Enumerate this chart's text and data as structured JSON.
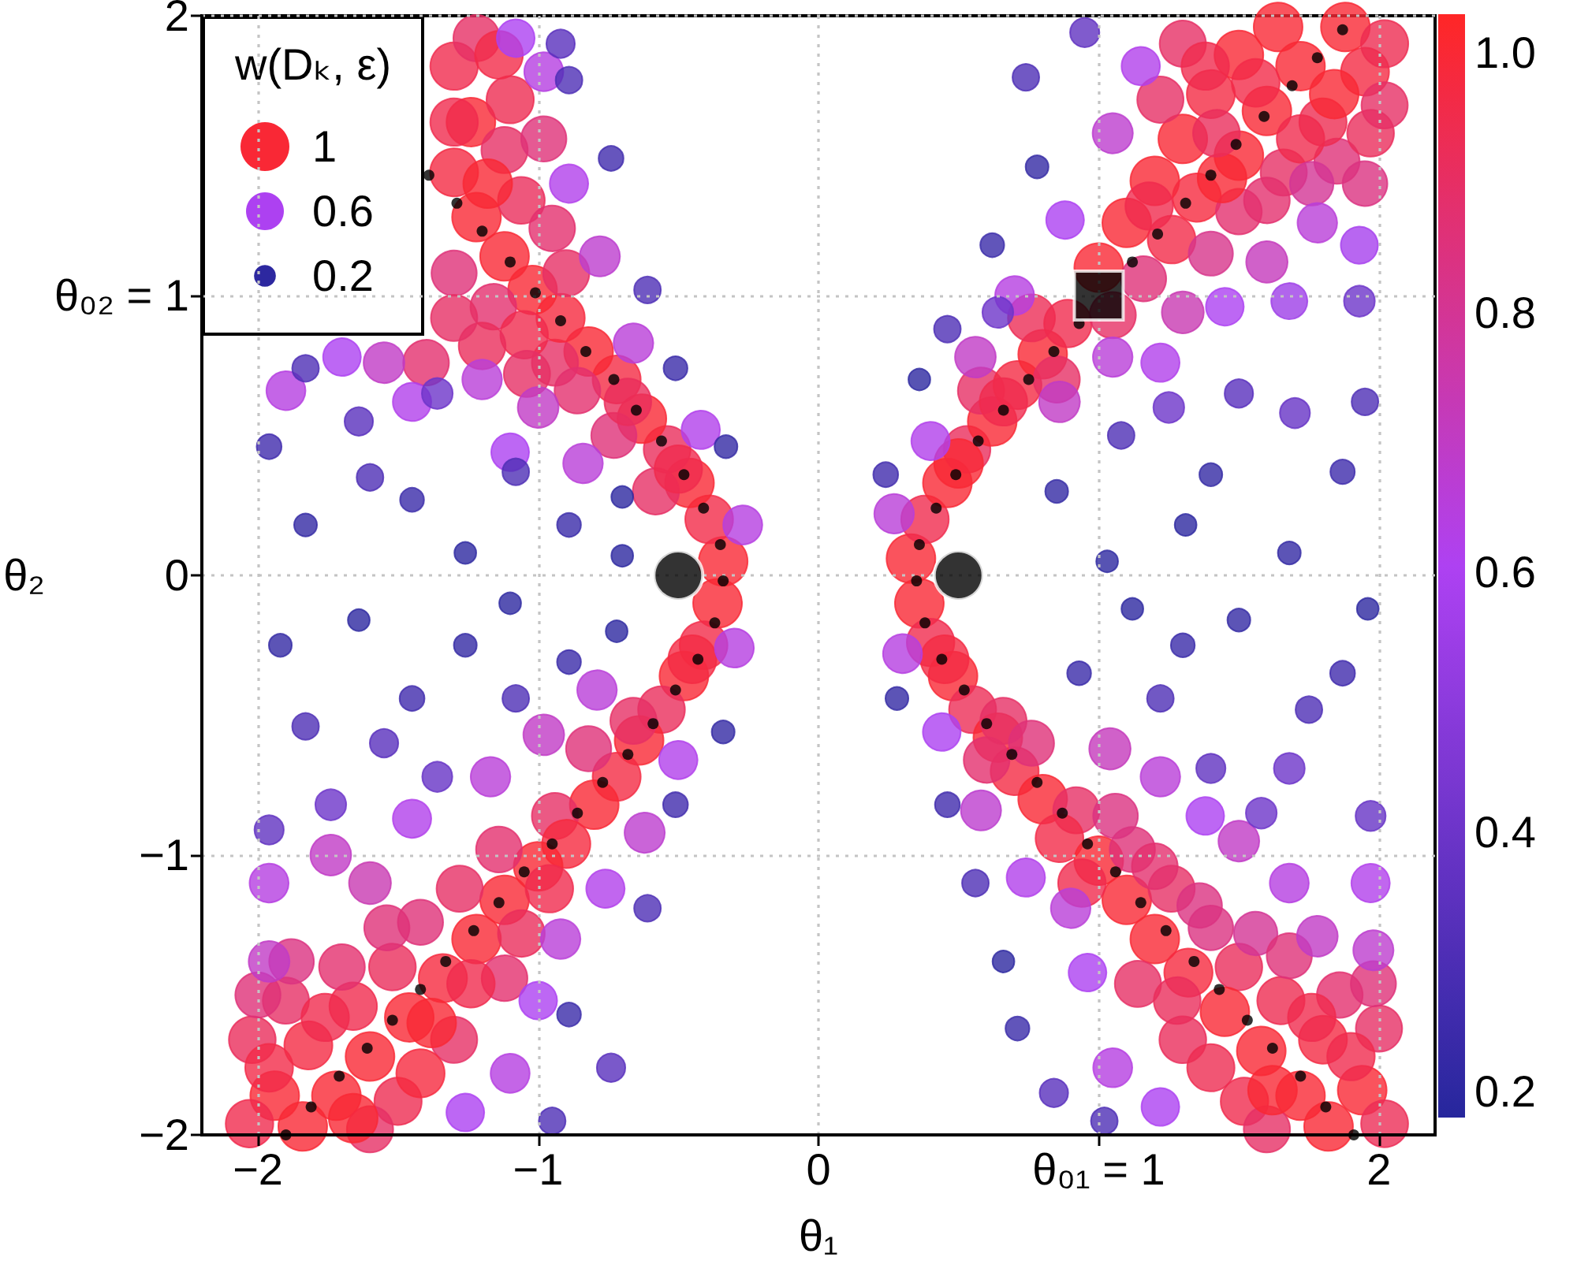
{
  "chart_data": {
    "type": "bubble",
    "xlabel": "θ₁",
    "ylabel": "θ₂",
    "legend_title": "w(Dₖ, ε)",
    "xlim": [
      -2.2,
      2.2
    ],
    "ylim": [
      -2,
      2
    ],
    "xticks": [
      -2,
      -1,
      0,
      {
        "value": 1,
        "label": "θ₀₁ = 1"
      },
      2
    ],
    "yticks": [
      -2,
      -1,
      0,
      {
        "value": 1,
        "label": "θ₀₂ = 1"
      },
      2
    ],
    "grid": true,
    "marker": "circle",
    "size_legend": [
      1,
      0.6,
      0.2
    ],
    "clim": [
      0.18,
      1.03
    ],
    "cticks": [
      0.2,
      0.4,
      0.6,
      0.8,
      {
        "value": 1,
        "label": "1.0"
      }
    ],
    "series": [
      {
        "x": [
          0.33,
          0.38,
          0.46,
          0.53,
          0.62,
          0.58,
          0.71,
          0.8,
          0.76,
          0.89,
          1.05,
          1.0,
          1.16,
          1.1,
          1.26,
          1.4,
          1.2,
          1.35,
          1.5,
          1.3,
          1.5,
          1.66,
          1.85,
          1.4,
          1.6,
          1.8,
          1.97,
          1.3,
          1.5,
          1.72,
          1.95,
          1.64,
          1.88,
          2.02,
          0.5,
          0.66,
          0.85,
          1.18,
          1.44,
          1.6,
          1.72,
          1.42,
          1.84,
          1.56,
          1.22,
          1.38,
          2.02,
          1.76,
          1.95,
          0.27,
          0.4,
          0.56,
          0.7,
          0.88,
          1.05,
          1.15,
          1.6,
          1.78,
          1.45,
          1.93,
          1.68,
          1.22,
          1.3,
          1.05,
          0.86,
          0.24,
          0.36,
          0.46,
          0.62,
          0.78,
          0.74,
          0.95,
          0.64,
          1.08,
          1.25,
          1.4,
          1.5,
          1.7,
          1.93,
          1.87,
          1.31,
          1.68,
          1.03,
          1.95,
          0.85
        ],
        "values": [
          0.06,
          0.2,
          0.33,
          0.45,
          0.55,
          0.66,
          0.68,
          0.79,
          0.92,
          0.9,
          0.93,
          1.1,
          1.06,
          1.26,
          1.2,
          1.15,
          1.41,
          1.35,
          1.3,
          1.56,
          1.5,
          1.44,
          1.48,
          1.72,
          1.66,
          1.62,
          1.58,
          1.9,
          1.86,
          1.82,
          1.8,
          1.96,
          1.96,
          1.68,
          0.4,
          0.62,
          0.7,
          1.32,
          1.42,
          1.34,
          1.56,
          1.58,
          1.72,
          1.76,
          1.7,
          1.82,
          1.9,
          1.4,
          1.4,
          0.22,
          0.48,
          0.78,
          1.0,
          1.27,
          1.58,
          1.82,
          1.12,
          1.26,
          0.96,
          1.18,
          0.98,
          0.76,
          0.94,
          0.78,
          0.62,
          0.36,
          0.7,
          0.88,
          1.18,
          1.46,
          1.78,
          1.94,
          0.94,
          0.5,
          0.6,
          0.36,
          0.65,
          0.58,
          0.98,
          0.37,
          0.18,
          0.08,
          0.05,
          0.62,
          0.3
        ],
        "sizes": [
          1,
          0.95,
          1,
          0.92,
          1,
          0.9,
          0.97,
          1,
          0.93,
          0.95,
          0.9,
          1,
          0.86,
          1,
          0.96,
          0.82,
          1,
          0.98,
          0.88,
          1,
          1,
          0.9,
          0.86,
          0.97,
          1,
          0.94,
          0.92,
          0.9,
          1,
          1,
          0.97,
          1,
          1,
          0.9,
          1,
          0.95,
          0.9,
          0.95,
          1,
          0.88,
          0.95,
          0.92,
          1,
          0.96,
          0.9,
          0.95,
          0.94,
          0.8,
          0.84,
          0.66,
          0.62,
          0.7,
          0.64,
          0.6,
          0.68,
          0.62,
          0.72,
          0.66,
          0.6,
          0.58,
          0.55,
          0.62,
          0.74,
          0.66,
          0.7,
          0.26,
          0.2,
          0.3,
          0.24,
          0.22,
          0.3,
          0.36,
          0.4,
          0.3,
          0.4,
          0.22,
          0.34,
          0.38,
          0.4,
          0.25,
          0.2,
          0.22,
          0.2,
          0.3,
          0.22
        ],
        "cvalues": [
          1,
          0.95,
          1,
          0.92,
          1,
          0.9,
          0.97,
          1,
          0.93,
          0.95,
          0.9,
          1,
          0.86,
          1,
          0.96,
          0.82,
          1,
          0.98,
          0.88,
          1,
          1,
          0.9,
          0.86,
          0.97,
          1,
          0.94,
          0.92,
          0.9,
          1,
          1,
          0.97,
          1,
          1,
          0.9,
          1,
          0.95,
          0.9,
          0.95,
          1,
          0.88,
          0.95,
          0.92,
          1,
          0.96,
          0.9,
          0.95,
          0.94,
          0.8,
          0.84,
          0.66,
          0.62,
          0.7,
          0.64,
          0.6,
          0.68,
          0.62,
          0.72,
          0.66,
          0.6,
          0.58,
          0.55,
          0.62,
          0.74,
          0.66,
          0.7,
          0.26,
          0.2,
          0.3,
          0.24,
          0.22,
          0.3,
          0.36,
          0.4,
          0.3,
          0.4,
          0.22,
          0.34,
          0.38,
          0.4,
          0.25,
          0.2,
          0.22,
          0.2,
          0.3,
          0.22
        ],
        "colors": [
          "#f92835",
          "#f02b4d",
          "#f92835",
          "#ea2d5b",
          "#f92835",
          "#e62f65",
          "#f42a43",
          "#f92835",
          "#ec2d56",
          "#f02b4d",
          "#e62f65",
          "#f92835",
          "#df3178",
          "#f92835",
          "#f22b48",
          "#d7348b",
          "#f92835",
          "#f6293e",
          "#e3306e",
          "#f92835",
          "#f92835",
          "#e62f65",
          "#df3178",
          "#f42a43",
          "#f92835",
          "#ee2c51",
          "#ea2d5b",
          "#e62f65",
          "#f92835",
          "#f92835",
          "#f42a43",
          "#f92835",
          "#f92835",
          "#e62f65",
          "#f92835",
          "#f02b4d",
          "#e62f65",
          "#f02b4d",
          "#f92835",
          "#e3306e",
          "#f02b4d",
          "#ea2d5b",
          "#f92835",
          "#f22b48",
          "#e62f65",
          "#f02b4d",
          "#ee2c51",
          "#d33595",
          "#db3281",
          "#b93ed8",
          "#b140eb",
          "#c03bc5",
          "#b53fe1",
          "#ad41f1",
          "#bd3dce",
          "#b140eb",
          "#c43abb",
          "#b93ed8",
          "#ad41f1",
          "#a640ed",
          "#9d3ee7",
          "#b140eb",
          "#c839b1",
          "#b93ed8",
          "#c03bc5",
          "#402bad",
          "#2d28a0",
          "#4d2eb5",
          "#392aa9",
          "#3329a4",
          "#4d2eb5",
          "#6032c1",
          "#6d34c9",
          "#4d2eb5",
          "#6d34c9",
          "#3329a4",
          "#5930bd",
          "#6633c5",
          "#6d34c9",
          "#3d2bab",
          "#2d28a0",
          "#3329a4",
          "#2d28a0",
          "#4d2eb5",
          "#3329a4"
        ]
      },
      {
        "x": [
          0.36,
          0.4,
          0.48,
          0.55,
          0.64,
          0.7,
          0.6,
          0.8,
          0.92,
          0.86,
          1.0,
          1.12,
          1.1,
          1.26,
          1.2,
          1.4,
          1.32,
          1.5,
          1.14,
          1.45,
          1.65,
          1.86,
          1.3,
          1.58,
          1.8,
          2.0,
          1.52,
          1.72,
          1.94,
          1.82,
          2.02,
          1.6,
          0.45,
          0.66,
          0.76,
          0.94,
          1.06,
          1.2,
          1.36,
          1.56,
          1.68,
          1.9,
          1.4,
          1.62,
          1.98,
          1.28,
          1.76,
          0.3,
          0.44,
          0.58,
          0.74,
          0.9,
          0.96,
          1.05,
          1.22,
          1.22,
          1.5,
          1.68,
          1.97,
          1.78,
          1.98,
          1.38,
          1.04,
          0.28,
          0.46,
          0.56,
          0.71,
          0.84,
          0.66,
          1.12,
          0.93,
          1.22,
          1.5,
          1.87,
          1.4,
          1.68,
          1.97,
          1.75,
          1.96,
          1.3,
          1.58,
          1.02
        ],
        "values": [
          -0.1,
          -0.24,
          -0.36,
          -0.48,
          -0.58,
          -0.7,
          -0.66,
          -0.8,
          -0.84,
          -0.94,
          -1.02,
          -0.98,
          -1.16,
          -1.12,
          -1.3,
          -1.26,
          -1.42,
          -1.4,
          -1.46,
          -1.56,
          -1.52,
          -1.5,
          -1.66,
          -1.7,
          -1.66,
          -1.62,
          -1.88,
          -1.86,
          -1.84,
          -1.97,
          -1.96,
          -1.98,
          -0.3,
          -0.52,
          -0.6,
          -1.1,
          -0.86,
          -1.04,
          -1.18,
          -1.28,
          -1.36,
          -1.72,
          -1.76,
          -1.84,
          -1.46,
          -1.52,
          -1.58,
          -0.28,
          -0.56,
          -0.84,
          -1.08,
          -1.19,
          -1.42,
          -1.76,
          -1.9,
          -0.72,
          -0.95,
          -1.1,
          -1.1,
          -1.29,
          -1.34,
          -0.86,
          -0.62,
          -0.44,
          -0.82,
          -1.1,
          -1.62,
          -1.85,
          -1.38,
          -0.12,
          -0.35,
          -0.44,
          -0.16,
          -0.35,
          -0.69,
          -0.69,
          -0.86,
          -0.48,
          -0.12,
          -0.25,
          -0.85,
          -1.95
        ],
        "sizes": [
          1,
          0.95,
          1,
          0.93,
          1,
          0.97,
          0.88,
          1,
          0.9,
          0.96,
          1,
          0.86,
          1,
          0.9,
          1,
          0.84,
          0.98,
          0.92,
          0.9,
          1,
          0.94,
          0.88,
          0.92,
          1,
          0.97,
          0.9,
          0.95,
          1,
          1,
          1,
          0.93,
          0.9,
          0.97,
          0.9,
          0.86,
          0.95,
          0.84,
          0.88,
          0.84,
          0.8,
          0.86,
          0.95,
          0.94,
          1,
          0.86,
          0.92,
          0.95,
          0.64,
          0.6,
          0.68,
          0.62,
          0.66,
          0.6,
          0.64,
          0.6,
          0.66,
          0.7,
          0.64,
          0.62,
          0.7,
          0.68,
          0.6,
          0.72,
          0.22,
          0.26,
          0.3,
          0.24,
          0.34,
          0.2,
          0.2,
          0.24,
          0.3,
          0.22,
          0.26,
          0.36,
          0.4,
          0.38,
          0.3,
          0.2,
          0.24,
          0.4,
          0.3
        ],
        "cvalues": [
          1,
          0.95,
          1,
          0.93,
          1,
          0.97,
          0.88,
          1,
          0.9,
          0.96,
          1,
          0.86,
          1,
          0.9,
          1,
          0.84,
          0.98,
          0.92,
          0.9,
          1,
          0.94,
          0.88,
          0.92,
          1,
          0.97,
          0.9,
          0.95,
          1,
          1,
          1,
          0.93,
          0.9,
          0.97,
          0.9,
          0.86,
          0.95,
          0.84,
          0.88,
          0.84,
          0.8,
          0.86,
          0.95,
          0.94,
          1,
          0.86,
          0.92,
          0.95,
          0.64,
          0.6,
          0.68,
          0.62,
          0.66,
          0.6,
          0.64,
          0.6,
          0.66,
          0.7,
          0.64,
          0.62,
          0.7,
          0.68,
          0.6,
          0.72,
          0.22,
          0.26,
          0.3,
          0.24,
          0.34,
          0.2,
          0.2,
          0.24,
          0.3,
          0.22,
          0.26,
          0.36,
          0.4,
          0.38,
          0.3,
          0.2,
          0.24,
          0.4,
          0.3
        ],
        "colors": [
          "#f92835",
          "#f02b4d",
          "#f92835",
          "#ec2d56",
          "#f92835",
          "#f42a43",
          "#e3306e",
          "#f92835",
          "#e62f65",
          "#f22b48",
          "#f92835",
          "#df3178",
          "#f92835",
          "#e62f65",
          "#f92835",
          "#db3281",
          "#f6293e",
          "#ea2d5b",
          "#e62f65",
          "#f92835",
          "#ee2c51",
          "#e3306e",
          "#ea2d5b",
          "#f92835",
          "#f42a43",
          "#e62f65",
          "#f02b4d",
          "#f92835",
          "#f92835",
          "#f92835",
          "#ec2d56",
          "#e62f65",
          "#f42a43",
          "#e62f65",
          "#df3178",
          "#f02b4d",
          "#db3281",
          "#e3306e",
          "#db3281",
          "#d33595",
          "#df3178",
          "#f02b4d",
          "#ee2c51",
          "#f92835",
          "#df3178",
          "#ea2d5b",
          "#f02b4d",
          "#b53fe1",
          "#ad41f1",
          "#bd3dce",
          "#b140eb",
          "#b93ed8",
          "#ad41f1",
          "#b53fe1",
          "#ad41f1",
          "#b93ed8",
          "#c03bc5",
          "#b53fe1",
          "#b140eb",
          "#c03bc5",
          "#bd3dce",
          "#ad41f1",
          "#c43abb",
          "#3329a4",
          "#402bad",
          "#4d2eb5",
          "#392aa9",
          "#5930bd",
          "#2d28a0",
          "#2d28a0",
          "#392aa9",
          "#4d2eb5",
          "#3329a4",
          "#402bad",
          "#6032c1",
          "#6d34c9",
          "#6633c5",
          "#4d2eb5",
          "#2d28a0",
          "#392aa9",
          "#6d34c9",
          "#4d2eb5"
        ]
      },
      {
        "x": [
          -0.36,
          -0.41,
          -0.48,
          -0.56,
          -0.64,
          -0.72,
          -0.82,
          -0.8,
          -0.94,
          -0.9,
          -1.0,
          -1.14,
          -1.12,
          -1.28,
          -1.22,
          -1.42,
          -1.34,
          -1.52,
          -1.12,
          -1.46,
          -1.66,
          -1.9,
          -1.3,
          -1.6,
          -1.82,
          -2.02,
          -1.5,
          -1.72,
          -1.94,
          -1.84,
          -2.03,
          -1.6,
          -0.45,
          -0.66,
          -0.96,
          -1.06,
          -1.24,
          -1.38,
          -1.54,
          -1.7,
          -1.88,
          -2.0,
          -1.76,
          -1.42,
          -1.66,
          -1.96,
          -0.3,
          -0.5,
          -0.62,
          -0.76,
          -0.92,
          -1.0,
          -1.1,
          -1.26,
          -1.96,
          -1.74,
          -1.45,
          -1.17,
          -0.98,
          -0.79,
          -1.96,
          -1.6,
          -0.34,
          -0.51,
          -0.61,
          -0.89,
          -0.74,
          -1.96,
          -1.83,
          -1.92,
          -1.64,
          -1.45,
          -1.26,
          -1.08,
          -0.89,
          -1.74,
          -1.36,
          -1.1,
          -1.55,
          -0.72,
          -0.95
        ],
        "values": [
          -0.1,
          -0.25,
          -0.36,
          -0.48,
          -0.59,
          -0.72,
          -0.62,
          -0.82,
          -0.86,
          -0.96,
          -1.04,
          -0.98,
          -1.16,
          -1.12,
          -1.3,
          -1.24,
          -1.44,
          -1.4,
          -1.44,
          -1.58,
          -1.54,
          -1.52,
          -1.66,
          -1.72,
          -1.68,
          -1.66,
          -1.88,
          -1.86,
          -1.86,
          -1.97,
          -1.96,
          -1.98,
          -0.3,
          -0.52,
          -1.12,
          -1.28,
          -1.46,
          -1.6,
          -1.26,
          -1.4,
          -1.38,
          -1.5,
          -1.58,
          -1.78,
          -1.94,
          -1.76,
          -0.26,
          -0.66,
          -0.92,
          -1.12,
          -1.3,
          -1.52,
          -1.78,
          -1.92,
          -1.1,
          -1.0,
          -0.87,
          -0.72,
          -0.57,
          -0.41,
          -1.38,
          -1.1,
          -0.56,
          -0.82,
          -1.19,
          -1.57,
          -1.76,
          -0.91,
          -0.54,
          -0.25,
          -0.16,
          -0.44,
          -0.25,
          -0.44,
          -0.31,
          -0.82,
          -0.72,
          -0.1,
          -0.6,
          -0.2,
          -1.95
        ],
        "sizes": [
          1,
          0.96,
          1,
          0.92,
          1,
          0.97,
          0.86,
          1,
          0.9,
          0.98,
          1,
          0.88,
          1,
          0.9,
          1,
          0.86,
          0.98,
          0.92,
          0.88,
          1,
          0.95,
          0.9,
          0.9,
          1,
          0.97,
          0.92,
          0.94,
          1,
          1,
          1,
          0.95,
          0.9,
          0.97,
          0.9,
          0.95,
          0.92,
          0.95,
          1,
          0.86,
          0.88,
          0.84,
          0.86,
          0.95,
          0.98,
          1,
          0.96,
          0.64,
          0.62,
          0.68,
          0.62,
          0.66,
          0.6,
          0.64,
          0.6,
          0.64,
          0.7,
          0.62,
          0.66,
          0.7,
          0.66,
          0.7,
          0.74,
          0.22,
          0.26,
          0.3,
          0.24,
          0.34,
          0.36,
          0.3,
          0.22,
          0.2,
          0.26,
          0.22,
          0.3,
          0.24,
          0.4,
          0.38,
          0.2,
          0.34,
          0.2,
          0.3
        ],
        "cvalues": [
          1,
          0.96,
          1,
          0.92,
          1,
          0.97,
          0.86,
          1,
          0.9,
          0.98,
          1,
          0.88,
          1,
          0.9,
          1,
          0.86,
          0.98,
          0.92,
          0.88,
          1,
          0.95,
          0.9,
          0.9,
          1,
          0.97,
          0.92,
          0.94,
          1,
          1,
          1,
          0.95,
          0.9,
          0.97,
          0.9,
          0.95,
          0.92,
          0.95,
          1,
          0.86,
          0.88,
          0.84,
          0.86,
          0.95,
          0.98,
          1,
          0.96,
          0.64,
          0.62,
          0.68,
          0.62,
          0.66,
          0.6,
          0.64,
          0.6,
          0.64,
          0.7,
          0.62,
          0.66,
          0.7,
          0.66,
          0.7,
          0.74,
          0.22,
          0.26,
          0.3,
          0.24,
          0.34,
          0.36,
          0.3,
          0.22,
          0.2,
          0.26,
          0.22,
          0.3,
          0.24,
          0.4,
          0.38,
          0.2,
          0.34,
          0.2,
          0.3
        ],
        "colors": [
          "#f92835",
          "#f22b48",
          "#f92835",
          "#ea2d5b",
          "#f92835",
          "#f42a43",
          "#df3178",
          "#f92835",
          "#e62f65",
          "#f6293e",
          "#f92835",
          "#e3306e",
          "#f92835",
          "#e62f65",
          "#f92835",
          "#df3178",
          "#f6293e",
          "#ea2d5b",
          "#e3306e",
          "#f92835",
          "#f02b4d",
          "#e62f65",
          "#e62f65",
          "#f92835",
          "#f42a43",
          "#ea2d5b",
          "#ee2c51",
          "#f92835",
          "#f92835",
          "#f92835",
          "#f02b4d",
          "#e62f65",
          "#f42a43",
          "#e62f65",
          "#f02b4d",
          "#ea2d5b",
          "#f02b4d",
          "#f92835",
          "#df3178",
          "#e3306e",
          "#db3281",
          "#df3178",
          "#f02b4d",
          "#f6293e",
          "#f92835",
          "#f22b48",
          "#b53fe1",
          "#b140eb",
          "#bd3dce",
          "#b140eb",
          "#b93ed8",
          "#ad41f1",
          "#b53fe1",
          "#ad41f1",
          "#b53fe1",
          "#c03bc5",
          "#b140eb",
          "#b93ed8",
          "#c03bc5",
          "#b93ed8",
          "#c03bc5",
          "#c839b1",
          "#3329a4",
          "#402bad",
          "#4d2eb5",
          "#392aa9",
          "#5930bd",
          "#6032c1",
          "#4d2eb5",
          "#3329a4",
          "#2d28a0",
          "#402bad",
          "#3329a4",
          "#4d2eb5",
          "#392aa9",
          "#6d34c9",
          "#6633c5",
          "#2d28a0",
          "#5930bd",
          "#2d28a0",
          "#4d2eb5"
        ]
      },
      {
        "x": [
          -0.34,
          -0.39,
          -0.46,
          -0.54,
          -0.63,
          -0.73,
          -0.72,
          -0.82,
          -0.94,
          -0.92,
          -1.02,
          -1.16,
          -1.12,
          -1.3,
          -1.22,
          -1.3,
          -1.06,
          -1.24,
          -1.12,
          -1.3,
          -1.22,
          -1.4,
          -0.95,
          -1.1,
          -0.98,
          -1.05,
          -0.58,
          -1.2,
          -0.5,
          -0.68,
          -0.86,
          -1.04,
          -1.3,
          -1.18,
          -1.3,
          -1.14,
          -0.9,
          -0.27,
          -0.42,
          -0.66,
          -0.89,
          -0.98,
          -1.08,
          -0.78,
          -1.0,
          -1.2,
          -1.45,
          -1.7,
          -1.9,
          -1.55,
          -0.84,
          -1.1,
          -1.83,
          -1.96,
          -1.64,
          -1.83,
          -1.45,
          -1.26,
          -1.08,
          -0.89,
          -1.36,
          -0.7,
          -0.61,
          -0.74,
          -0.89,
          -0.51,
          -0.33,
          -0.92,
          -1.6,
          -0.7
        ],
        "values": [
          0.05,
          0.2,
          0.33,
          0.45,
          0.56,
          0.5,
          0.7,
          0.8,
          0.76,
          0.92,
          1.02,
          0.96,
          1.14,
          1.08,
          1.28,
          1.44,
          1.34,
          1.62,
          1.52,
          1.82,
          1.92,
          0.76,
          1.24,
          1.7,
          1.56,
          0.86,
          0.3,
          0.82,
          0.38,
          0.62,
          0.66,
          0.72,
          0.92,
          1.4,
          1.62,
          1.86,
          1.08,
          0.18,
          0.52,
          0.83,
          1.4,
          1.8,
          1.92,
          1.14,
          0.6,
          0.7,
          0.62,
          0.78,
          0.66,
          0.76,
          0.4,
          0.44,
          0.74,
          0.46,
          0.55,
          0.18,
          0.27,
          0.08,
          0.37,
          0.18,
          0.65,
          0.07,
          1.02,
          1.49,
          1.77,
          0.74,
          0.46,
          1.9,
          0.35,
          0.28
        ],
        "sizes": [
          1,
          0.96,
          1,
          0.92,
          1,
          0.86,
          0.97,
          1,
          0.9,
          0.98,
          1,
          0.88,
          1,
          0.86,
          1,
          0.97,
          0.92,
          1,
          0.9,
          0.95,
          0.9,
          0.88,
          0.88,
          0.94,
          0.86,
          0.95,
          0.9,
          0.92,
          0.95,
          0.92,
          0.88,
          0.9,
          0.9,
          1,
          0.95,
          0.96,
          0.9,
          0.64,
          0.62,
          0.66,
          0.62,
          0.64,
          0.6,
          0.68,
          0.7,
          0.66,
          0.62,
          0.6,
          0.64,
          0.7,
          0.66,
          0.6,
          0.3,
          0.26,
          0.34,
          0.22,
          0.24,
          0.2,
          0.3,
          0.24,
          0.4,
          0.2,
          0.3,
          0.26,
          0.3,
          0.24,
          0.22,
          0.34,
          0.3,
          0.2
        ],
        "cvalues": [
          1,
          0.96,
          1,
          0.92,
          1,
          0.86,
          0.97,
          1,
          0.9,
          0.98,
          1,
          0.88,
          1,
          0.86,
          1,
          0.97,
          0.92,
          1,
          0.9,
          0.95,
          0.9,
          0.88,
          0.88,
          0.94,
          0.86,
          0.95,
          0.9,
          0.92,
          0.95,
          0.92,
          0.88,
          0.9,
          0.9,
          1,
          0.95,
          0.96,
          0.9,
          0.64,
          0.62,
          0.66,
          0.62,
          0.64,
          0.6,
          0.68,
          0.7,
          0.66,
          0.62,
          0.6,
          0.64,
          0.7,
          0.66,
          0.6,
          0.3,
          0.26,
          0.34,
          0.22,
          0.24,
          0.2,
          0.3,
          0.24,
          0.4,
          0.2,
          0.3,
          0.26,
          0.3,
          0.24,
          0.22,
          0.34,
          0.3,
          0.2
        ],
        "colors": [
          "#f92835",
          "#f22b48",
          "#f92835",
          "#ea2d5b",
          "#f92835",
          "#df3178",
          "#f42a43",
          "#f92835",
          "#e62f65",
          "#f6293e",
          "#f92835",
          "#e3306e",
          "#f92835",
          "#df3178",
          "#f92835",
          "#f42a43",
          "#ea2d5b",
          "#f92835",
          "#e62f65",
          "#f02b4d",
          "#e62f65",
          "#e3306e",
          "#e3306e",
          "#ee2c51",
          "#df3178",
          "#f02b4d",
          "#e62f65",
          "#ea2d5b",
          "#f02b4d",
          "#ea2d5b",
          "#e3306e",
          "#e62f65",
          "#e62f65",
          "#f92835",
          "#f02b4d",
          "#f22b48",
          "#e62f65",
          "#b53fe1",
          "#b140eb",
          "#b93ed8",
          "#b140eb",
          "#b53fe1",
          "#ad41f1",
          "#bd3dce",
          "#c03bc5",
          "#b93ed8",
          "#b140eb",
          "#ad41f1",
          "#b53fe1",
          "#c03bc5",
          "#b93ed8",
          "#ad41f1",
          "#4d2eb5",
          "#402bad",
          "#5930bd",
          "#3329a4",
          "#392aa9",
          "#2d28a0",
          "#4d2eb5",
          "#392aa9",
          "#6d34c9",
          "#2d28a0",
          "#4d2eb5",
          "#402bad",
          "#4d2eb5",
          "#392aa9",
          "#3329a4",
          "#5930bd",
          "#4d2eb5",
          "#2d28a0"
        ]
      },
      {
        "type": "scatter",
        "color": "#000000",
        "x": [
          -1.39,
          -1.29,
          -1.2,
          -1.1,
          -1.01,
          -0.92,
          -0.83,
          -0.73,
          -0.65,
          -0.56,
          -0.48,
          -0.41,
          -0.35,
          -0.34,
          -0.37,
          -0.43,
          -0.51,
          -0.59,
          -0.68,
          -0.77,
          -0.86,
          -0.95,
          -1.05,
          -1.14,
          -1.23,
          -1.33,
          -1.42,
          -1.52,
          -1.61,
          -1.71,
          -1.81,
          -1.9,
          0.35,
          0.36,
          0.42,
          0.49,
          0.57,
          0.66,
          0.75,
          0.84,
          0.93,
          1.12,
          1.21,
          1.31,
          1.4,
          1.49,
          1.59,
          1.69,
          1.78,
          1.87,
          0.38,
          0.44,
          0.52,
          0.6,
          0.69,
          0.78,
          0.87,
          0.96,
          1.06,
          1.15,
          1.24,
          1.34,
          1.43,
          1.53,
          1.62,
          1.72,
          1.81,
          1.91
        ],
        "values": [
          1.43,
          1.33,
          1.23,
          1.12,
          1.01,
          0.91,
          0.8,
          0.7,
          0.59,
          0.48,
          0.36,
          0.24,
          0.11,
          -0.02,
          -0.17,
          -0.3,
          -0.41,
          -0.53,
          -0.64,
          -0.74,
          -0.85,
          -0.96,
          -1.06,
          -1.17,
          -1.27,
          -1.38,
          -1.48,
          -1.59,
          -1.69,
          -1.79,
          -1.9,
          -2.0,
          -0.02,
          0.11,
          0.24,
          0.36,
          0.48,
          0.59,
          0.7,
          0.8,
          0.9,
          1.12,
          1.22,
          1.33,
          1.43,
          1.54,
          1.64,
          1.75,
          1.85,
          1.95,
          -0.17,
          -0.3,
          -0.41,
          -0.53,
          -0.64,
          -0.74,
          -0.85,
          -0.96,
          -1.06,
          -1.17,
          -1.27,
          -1.38,
          -1.48,
          -1.59,
          -1.69,
          -1.79,
          -1.9,
          -2.0
        ]
      },
      {
        "color": "#000000",
        "x": [
          -0.5,
          0.5
        ],
        "values": [
          0,
          0
        ],
        "sizes": [
          1,
          1
        ]
      },
      {
        "color": "#000000",
        "marker": "square",
        "x": [
          1
        ],
        "values": [
          1
        ],
        "sizes": [
          1.27
        ]
      }
    ]
  }
}
